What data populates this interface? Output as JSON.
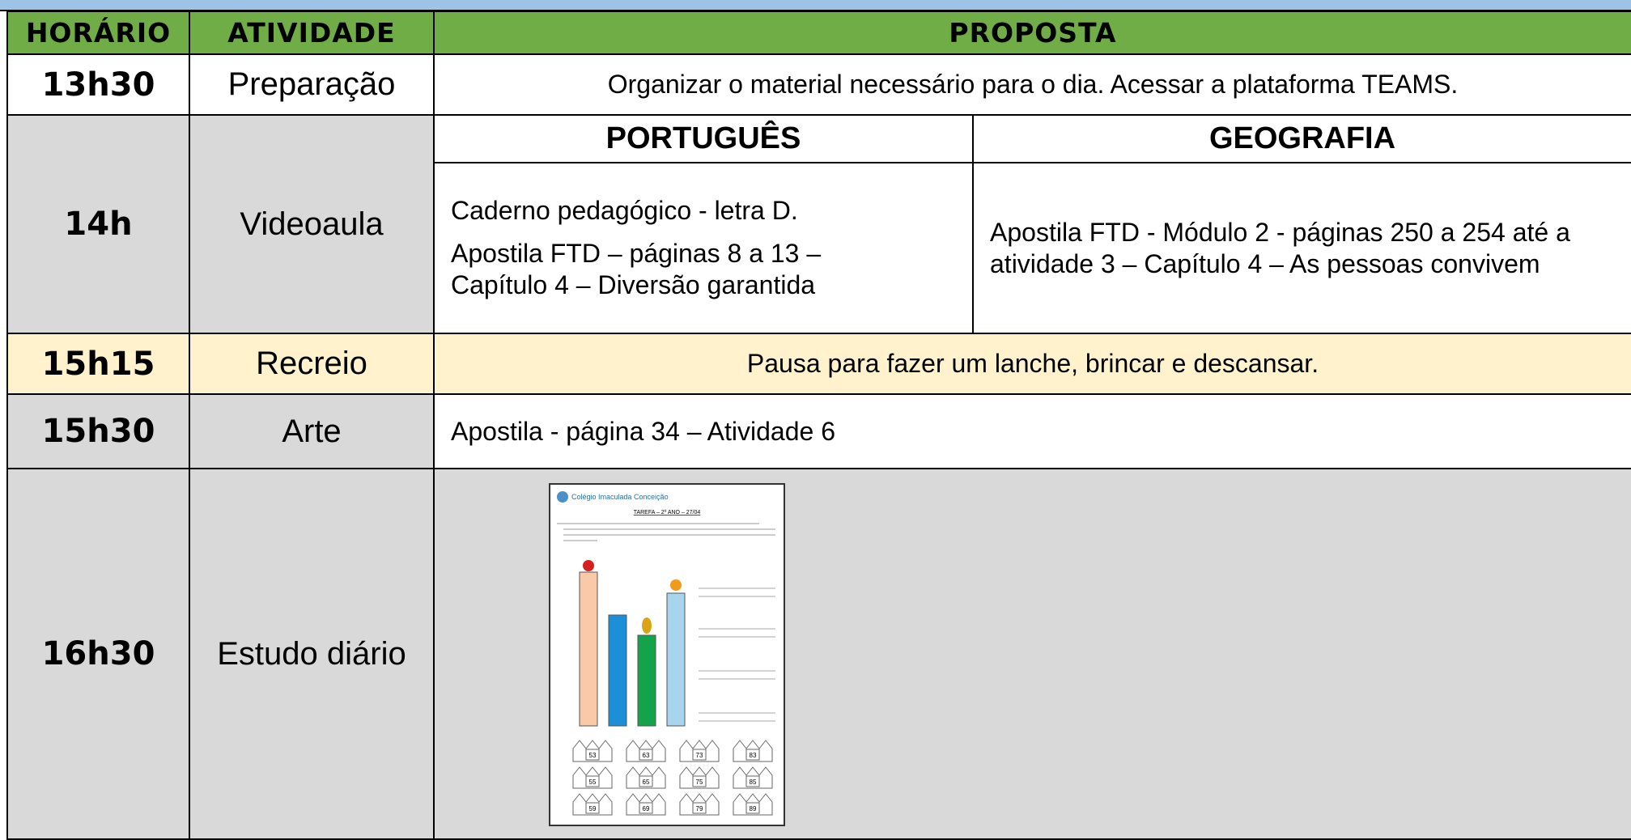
{
  "header": {
    "columns": [
      "HORÁRIO",
      "ATIVIDADE",
      "PROPOSTA"
    ]
  },
  "rows": [
    {
      "time": "13h30",
      "activity": "Preparação",
      "proposal": "Organizar o material necessário para o dia. Acessar a plataforma TEAMS."
    },
    {
      "time": "14h",
      "activity": "Videoaula",
      "subjects": [
        {
          "name": "PORTUGUÊS",
          "lines": [
            "Caderno pedagógico - letra D.",
            "Apostila FTD – páginas 8 a 13 – Capítulo 4 – Diversão garantida"
          ]
        },
        {
          "name": "GEOGRAFIA",
          "lines": [
            "Apostila FTD - Módulo 2 - páginas 250 a 254 até a atividade 3 – Capítulo 4 – As pessoas convivem"
          ]
        }
      ]
    },
    {
      "time": "15h15",
      "activity": "Recreio",
      "proposal": "Pausa para fazer um lanche, brincar e descansar."
    },
    {
      "time": "15h30",
      "activity": "Arte",
      "proposal": "Apostila - página 34 – Atividade 6"
    },
    {
      "time": "16h30",
      "activity": "Estudo diário",
      "worksheet": {
        "school": "Colégio Imaculada Conceição",
        "title": "TAREFA – 2º ANO – 27/04",
        "numbers": [
          "53",
          "63",
          "73",
          "83",
          "55",
          "65",
          "75",
          "85",
          "59",
          "69",
          "79",
          "89"
        ]
      }
    }
  ]
}
